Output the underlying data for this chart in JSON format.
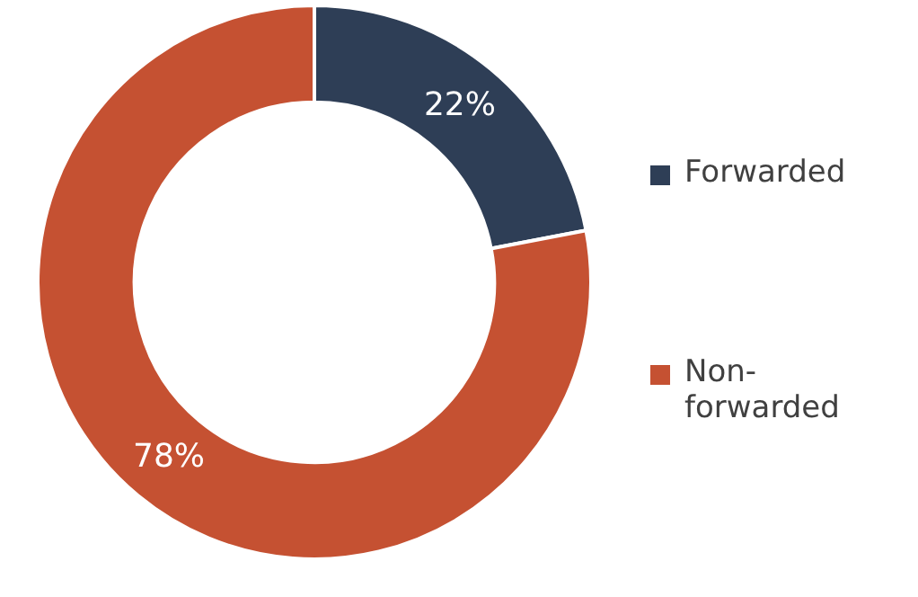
{
  "chart_data": {
    "type": "donut",
    "categories": [
      "Forwarded",
      "Non-forwarded"
    ],
    "values": [
      22,
      78
    ],
    "colors": [
      "#2e3e56",
      "#c55132"
    ],
    "value_labels": [
      "22%",
      "78%"
    ],
    "legend": "right"
  }
}
